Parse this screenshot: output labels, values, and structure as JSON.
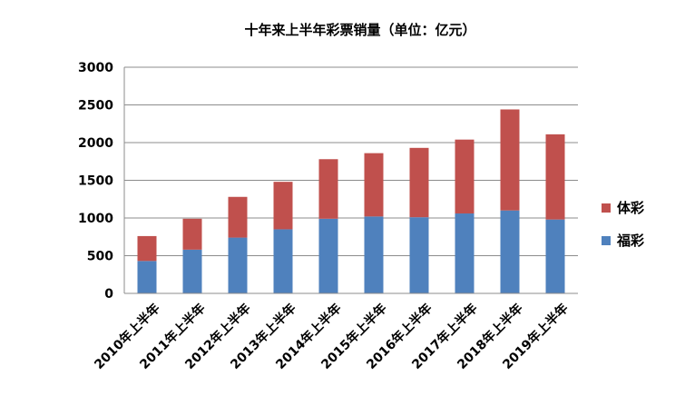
{
  "chart_data": {
    "type": "bar",
    "stacked": true,
    "title": "十年来上半年彩票销量（单位：亿元）",
    "xlabel": "",
    "ylabel": "",
    "ylim": [
      0,
      3000
    ],
    "yticks": [
      0,
      500,
      1000,
      1500,
      2000,
      2500,
      3000
    ],
    "grid": true,
    "legend_position": "right",
    "categories": [
      "2010年上半年",
      "2011年上半年",
      "2012年上半年",
      "2013年上半年",
      "2014年上半年",
      "2015年上半年",
      "2016年上半年",
      "2017年上半年",
      "2018年上半年",
      "2019年上半年"
    ],
    "series": [
      {
        "name": "福彩",
        "color": "#4f81bd",
        "values": [
          430,
          580,
          740,
          850,
          990,
          1020,
          1010,
          1060,
          1100,
          980
        ]
      },
      {
        "name": "体彩",
        "color": "#c0504d",
        "values": [
          330,
          410,
          540,
          630,
          790,
          840,
          920,
          980,
          1340,
          1130
        ]
      }
    ]
  }
}
